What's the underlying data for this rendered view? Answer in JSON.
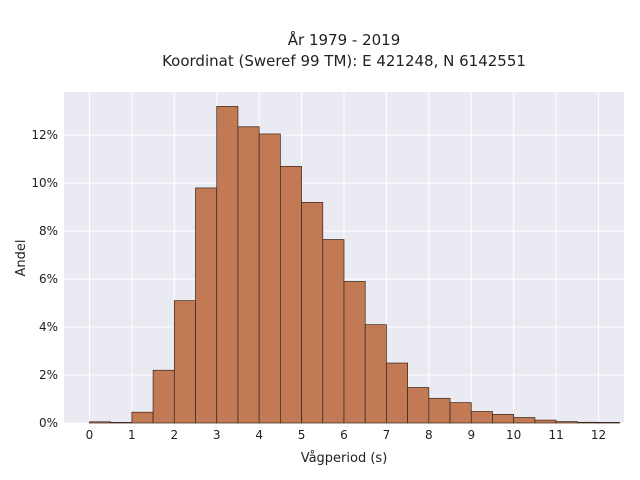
{
  "chart_data": {
    "type": "bar",
    "title_lines": [
      "År 1979 - 2019",
      "Koordinat (Sweref 99 TM): E 421248, N 6142551"
    ],
    "xlabel": "Vågperiod (s)",
    "ylabel": "Andel",
    "bin_width": 0.5,
    "bin_starts": [
      0,
      0.5,
      1,
      1.5,
      2,
      2.5,
      3,
      3.5,
      4,
      4.5,
      5,
      5.5,
      6,
      6.5,
      7,
      7.5,
      8,
      8.5,
      9,
      9.5,
      10,
      10.5,
      11,
      11.5,
      12
    ],
    "values": [
      0.0005,
      0,
      0.0045,
      0.022,
      0.051,
      0.098,
      0.132,
      0.1235,
      0.1205,
      0.107,
      0.092,
      0.0765,
      0.059,
      0.041,
      0.025,
      0.0148,
      0.0103,
      0.0085,
      0.0048,
      0.0036,
      0.0023,
      0.0012,
      0.0006,
      0.0003,
      0
    ],
    "xlim": [
      -0.6,
      12.6
    ],
    "ylim": [
      0,
      0.138
    ],
    "x_ticks": [
      0,
      1,
      2,
      3,
      4,
      5,
      6,
      7,
      8,
      9,
      10,
      11,
      12
    ],
    "x_tick_labels": [
      "0",
      "1",
      "2",
      "3",
      "4",
      "5",
      "6",
      "7",
      "8",
      "9",
      "10",
      "11",
      "12"
    ],
    "y_ticks": [
      0,
      0.02,
      0.04,
      0.06,
      0.08,
      0.1,
      0.12
    ],
    "y_tick_labels": [
      "0%",
      "2%",
      "4%",
      "6%",
      "8%",
      "10%",
      "12%"
    ],
    "grid": true,
    "bar_color": "#c17a54",
    "bar_edge_color": "#3a2418",
    "background_color": "#eaeaf2"
  }
}
